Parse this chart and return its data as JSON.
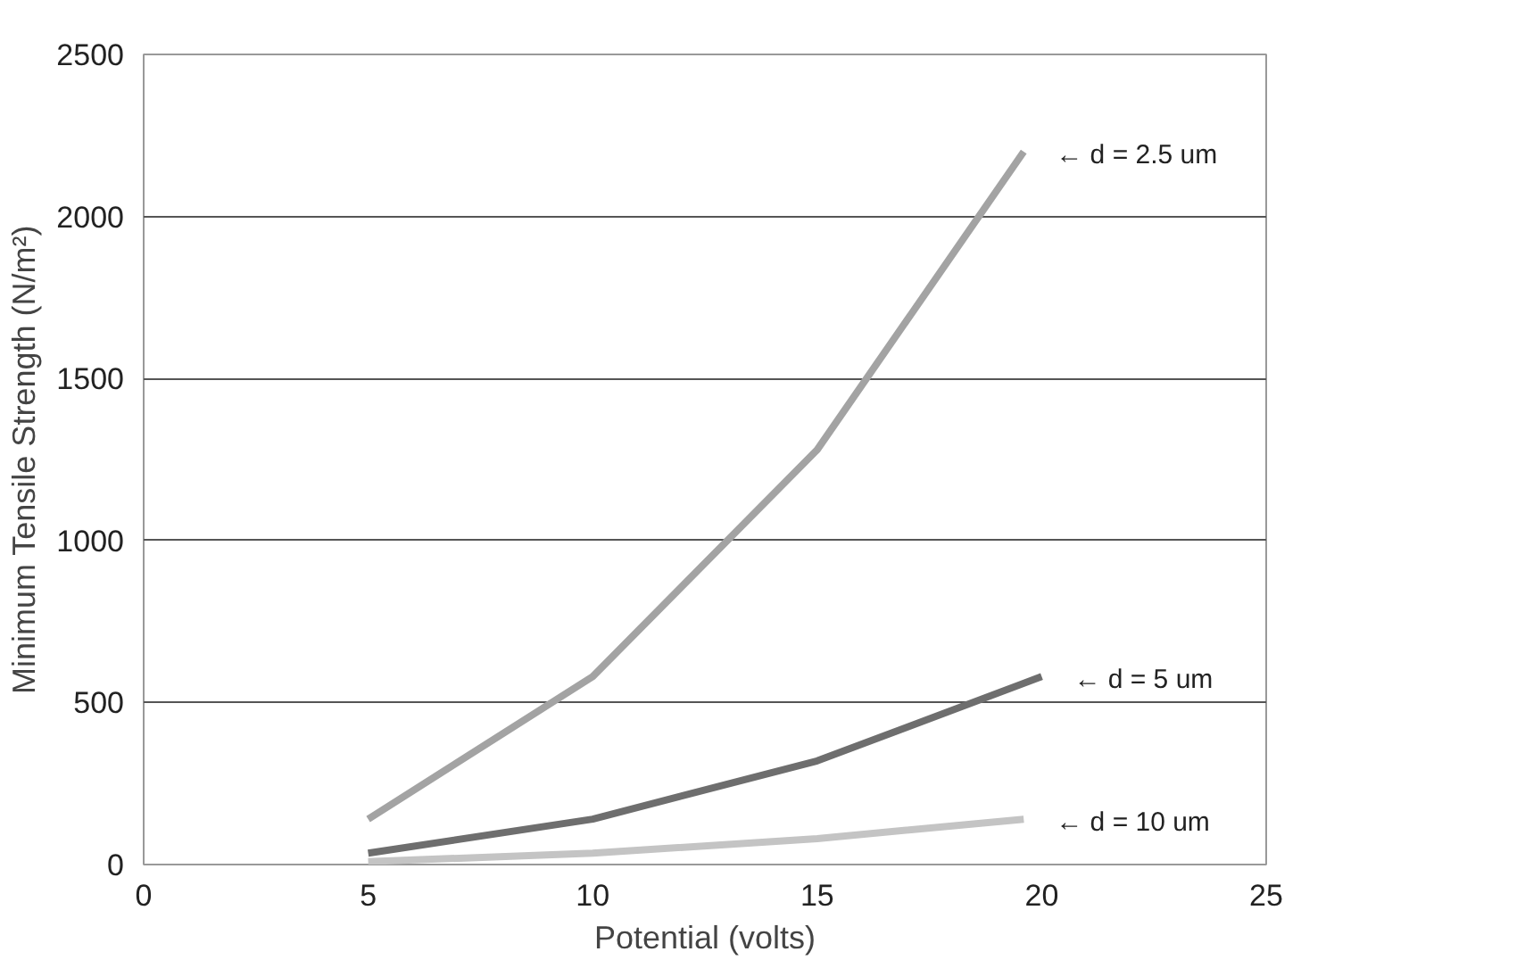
{
  "chart_data": {
    "type": "line",
    "xlabel": "Potential (volts)",
    "ylabel": "Minimum Tensile Strength (N/m²)",
    "xlim": [
      0,
      25
    ],
    "xticks": [
      0,
      5,
      10,
      15,
      20,
      25
    ],
    "ylim": [
      0,
      2500
    ],
    "yticks": [
      0,
      500,
      1000,
      1500,
      2000,
      2500
    ],
    "grid": "y",
    "legend": false,
    "marker": "none",
    "line_style": "solid",
    "series": [
      {
        "name": "← d = 2.5 um",
        "color": "#a3a3a3",
        "x": [
          5,
          10,
          15,
          19.6
        ],
        "values": [
          140,
          580,
          1280,
          2200
        ]
      },
      {
        "name": "← d = 5 um",
        "color": "#6e6e6e",
        "x": [
          5,
          10,
          15,
          20
        ],
        "values": [
          35,
          140,
          320,
          580
        ]
      },
      {
        "name": "← d = 10 um",
        "color": "#c4c4c4",
        "x": [
          5,
          10,
          15,
          19.6
        ],
        "values": [
          9,
          35,
          80,
          140
        ]
      }
    ]
  }
}
